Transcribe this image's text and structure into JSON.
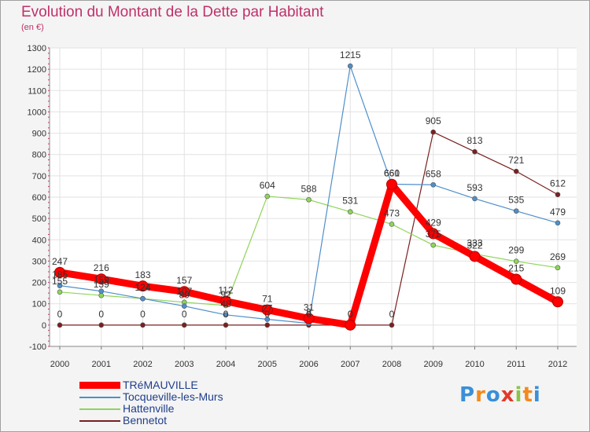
{
  "chart_data": {
    "type": "line",
    "title": "Evolution du Montant de la Dette par Habitant",
    "subtitle": "(en €)",
    "x": [
      "2000",
      "2001",
      "2002",
      "2003",
      "2004",
      "2005",
      "2006",
      "2007",
      "2008",
      "2009",
      "2010",
      "2011",
      "2012"
    ],
    "ylim": [
      -100,
      1300
    ],
    "yticks": [
      "-100",
      "0",
      "100",
      "200",
      "300",
      "400",
      "500",
      "600",
      "700",
      "800",
      "900",
      "1000",
      "1100",
      "1200",
      "1300"
    ],
    "grid": true,
    "legend_position": "bottom-left",
    "series": [
      {
        "name": "TRéMAUVILLE",
        "color": "#ff0000",
        "values": [
          247,
          216,
          183,
          157,
          112,
          71,
          31,
          0,
          660,
          429,
          322,
          215,
          109
        ]
      },
      {
        "name": "Tocqueville-les-Murs",
        "color": "#4f8fca",
        "values": [
          185,
          159,
          124,
          89,
          48,
          27,
          8,
          1215,
          661,
          658,
          593,
          535,
          479
        ]
      },
      {
        "name": "Hattenville",
        "color": "#8fd45a",
        "values": [
          155,
          139,
          124,
          107,
          92,
          604,
          588,
          531,
          473,
          375,
          333,
          299,
          269
        ]
      },
      {
        "name": "Bennetot",
        "color": "#7a2020",
        "values": [
          0,
          0,
          0,
          0,
          0,
          0,
          0,
          0,
          0,
          905,
          813,
          721,
          612
        ]
      }
    ]
  },
  "logo": {
    "letters": [
      "P",
      "r",
      "o",
      "x",
      "i",
      "t",
      "i"
    ],
    "colors": [
      "#3a8fd8",
      "#f28a1f",
      "#3a8fd8",
      "#e23a2a",
      "#8bc34a",
      "#f28a1f",
      "#3a8fd8"
    ]
  }
}
